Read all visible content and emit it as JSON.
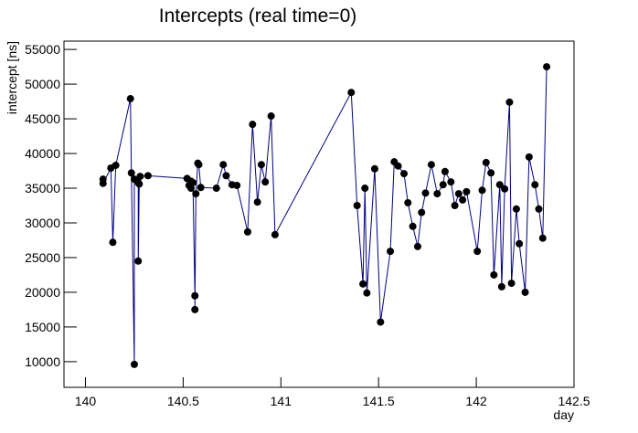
{
  "chart_data": {
    "type": "line",
    "title": "Intercepts (real time=0)",
    "x_label": "day",
    "y_label": "intercept [ns]",
    "x": [
      140.09,
      140.09,
      140.13,
      140.14,
      140.155,
      140.23,
      140.235,
      140.25,
      140.25,
      140.27,
      140.27,
      140.275,
      140.28,
      140.32,
      140.52,
      140.53,
      140.54,
      140.54,
      140.55,
      140.56,
      140.56,
      140.565,
      140.575,
      140.58,
      140.59,
      140.67,
      140.705,
      140.72,
      140.75,
      140.775,
      140.83,
      140.855,
      140.88,
      140.9,
      140.92,
      140.95,
      140.97,
      141.36,
      141.39,
      141.42,
      141.43,
      141.44,
      141.48,
      141.51,
      141.56,
      141.58,
      141.6,
      141.63,
      141.65,
      141.675,
      141.7,
      141.72,
      141.74,
      141.77,
      141.8,
      141.83,
      141.84,
      141.87,
      141.89,
      141.91,
      141.93,
      141.95,
      142.005,
      142.03,
      142.05,
      142.075,
      142.09,
      142.12,
      142.13,
      142.145,
      142.17,
      142.18,
      142.205,
      142.22,
      142.25,
      142.27,
      142.3,
      142.32,
      142.34,
      142.36
    ],
    "series": [
      {
        "name": "intercept",
        "color": "#000080",
        "marker_color": "#000000",
        "values": [
          36300,
          35700,
          37900,
          27200,
          38300,
          47900,
          37200,
          9600,
          36300,
          35800,
          24500,
          35600,
          36700,
          36800,
          36400,
          35400,
          36000,
          35000,
          35800,
          19500,
          17500,
          34200,
          38600,
          38400,
          35100,
          35000,
          38400,
          36800,
          35500,
          35400,
          28700,
          44200,
          33000,
          38400,
          35900,
          45400,
          28300,
          48800,
          32500,
          21200,
          35000,
          19900,
          37800,
          15700,
          25900,
          38800,
          38200,
          37100,
          32900,
          29500,
          26600,
          31500,
          34300,
          38400,
          34200,
          35500,
          37400,
          35900,
          32500,
          34200,
          33300,
          34500,
          25900,
          34700,
          38700,
          37200,
          22500,
          35500,
          20800,
          34900,
          47400,
          21300,
          32000,
          27000,
          20000,
          39500,
          35500,
          32000,
          27800,
          52500
        ]
      }
    ],
    "xlim": [
      139.89,
      142.5
    ],
    "xticks": [
      140,
      140.5,
      141,
      141.5,
      142,
      142.5
    ],
    "ylim": [
      6300,
      56200
    ],
    "yticks": [
      10000,
      15000,
      20000,
      25000,
      30000,
      35000,
      40000,
      45000,
      50000,
      55000
    ]
  }
}
